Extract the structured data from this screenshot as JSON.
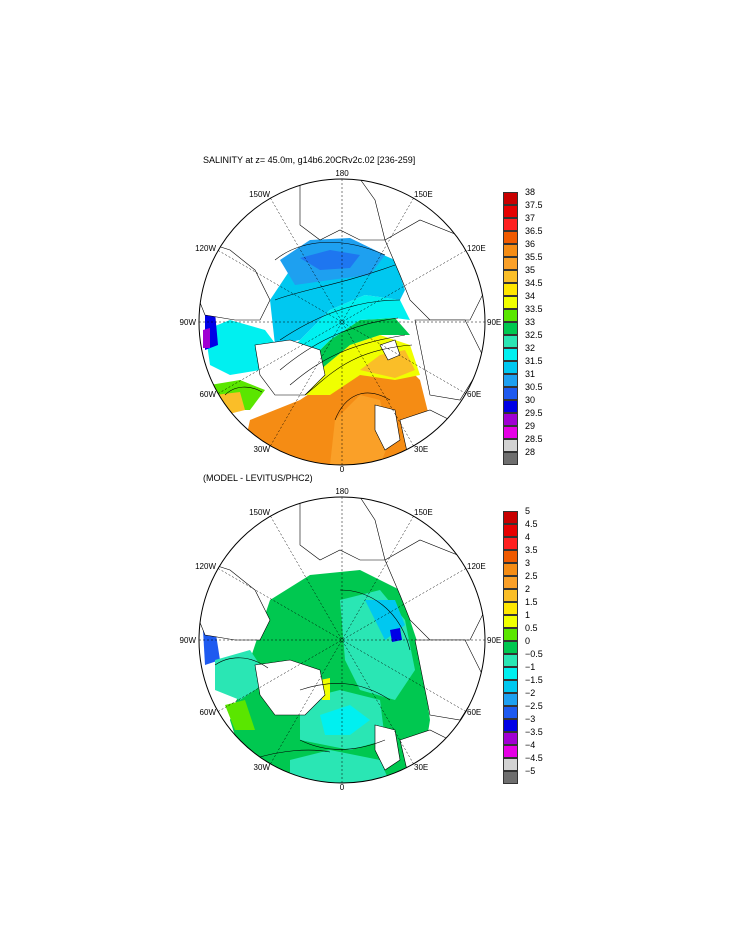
{
  "top_panel": {
    "title": "SALINITY at z=  45.0m, g14b6.20CRv2c.02 [236-259]",
    "lon_labels": {
      "n": "180",
      "s": "0",
      "w90": "90W",
      "e90": "90E",
      "w150": "150W",
      "e150": "150E",
      "w120": "120W",
      "e120": "120E",
      "w60": "60W",
      "e60": "60E",
      "w30": "30W",
      "e30": "30E"
    },
    "colorbar": {
      "labels": [
        "38",
        "37.5",
        "37",
        "36.5",
        "36",
        "35.5",
        "35",
        "34.5",
        "34",
        "33.5",
        "33",
        "32.5",
        "32",
        "31.5",
        "31",
        "30.5",
        "30",
        "29.5",
        "29",
        "28.5",
        "28"
      ],
      "colors": [
        "#c80000",
        "#e60000",
        "#ff2020",
        "#f05a00",
        "#f58c14",
        "#faa028",
        "#fabe28",
        "#ffe600",
        "#f0ff00",
        "#5ae600",
        "#00c850",
        "#2ae6b4",
        "#00f0f0",
        "#00c8f0",
        "#1ea0f0",
        "#1e5af0",
        "#0000e6",
        "#a000d2",
        "#e600e6",
        "#d2d2d2",
        "#6e6e6e"
      ]
    }
  },
  "bottom_panel": {
    "title": "(MODEL - LEVITUS/PHC2)",
    "lon_labels": {
      "n": "180",
      "s": "0",
      "w90": "90W",
      "e90": "90E",
      "w150": "150W",
      "e150": "150E",
      "w120": "120W",
      "e120": "120E",
      "w60": "60W",
      "e60": "60E",
      "w30": "30W",
      "e30": "30E"
    },
    "colorbar": {
      "labels": [
        "5",
        "4.5",
        "4",
        "3.5",
        "3",
        "2.5",
        "2",
        "1.5",
        "1",
        "0.5",
        "0",
        "−0.5",
        "−1",
        "−1.5",
        "−2",
        "−2.5",
        "−3",
        "−3.5",
        "−4",
        "−4.5",
        "−5"
      ],
      "colors": [
        "#c80000",
        "#e60000",
        "#ff2020",
        "#f05a00",
        "#f58c14",
        "#faa028",
        "#fabe28",
        "#ffe600",
        "#f0ff00",
        "#5ae600",
        "#00c850",
        "#2ae6b4",
        "#00f0f0",
        "#00c8f0",
        "#1ea0f0",
        "#1e5af0",
        "#0000e6",
        "#a000d2",
        "#e600e6",
        "#d2d2d2",
        "#6e6e6e"
      ]
    }
  }
}
